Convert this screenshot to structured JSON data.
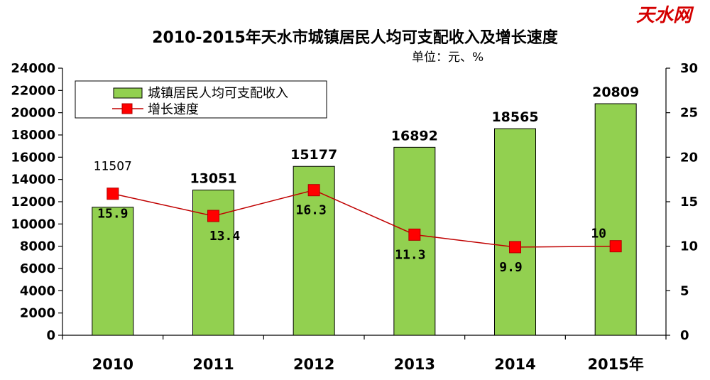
{
  "watermark": "天水网",
  "chart_data": {
    "type": "bar",
    "title": "2010-2015年天水市城镇居民人均可支配收入及增长速度",
    "unit": "单位：元、%",
    "categories": [
      "2010",
      "2011",
      "2012",
      "2013",
      "2014",
      "2015年"
    ],
    "series": [
      {
        "name": "城镇居民人均可支配收入",
        "type": "bar",
        "axis": "left",
        "color": "#92d050",
        "values": [
          11507,
          13051,
          15177,
          16892,
          18565,
          20809
        ],
        "labels": [
          "11507",
          "13051",
          "15177",
          "16892",
          "18565",
          "20809"
        ]
      },
      {
        "name": "增长速度",
        "type": "line",
        "axis": "right",
        "color": "#c00000",
        "marker_color": "#ff0000",
        "values": [
          15.9,
          13.4,
          16.3,
          11.3,
          9.9,
          10
        ],
        "labels": [
          "15.9",
          "13.4",
          "16.3",
          "11.3",
          "9.9",
          "10"
        ]
      }
    ],
    "y_left": {
      "min": 0,
      "max": 24000,
      "step": 2000,
      "ticks": [
        "0",
        "2000",
        "4000",
        "6000",
        "8000",
        "10000",
        "12000",
        "14000",
        "16000",
        "18000",
        "20000",
        "22000",
        "24000"
      ]
    },
    "y_right": {
      "min": 0,
      "max": 30,
      "step": 5,
      "ticks": [
        "0",
        "5",
        "10",
        "15",
        "20",
        "25",
        "30"
      ]
    },
    "grid": false,
    "legend_position": "top-left"
  }
}
